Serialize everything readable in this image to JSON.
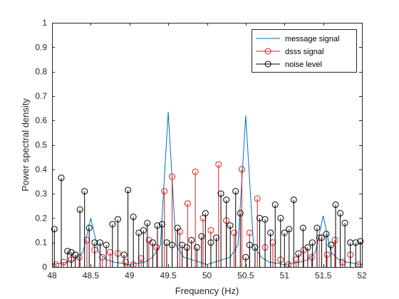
{
  "chart_data": {
    "type": "line+stem",
    "title": "",
    "xlabel": "Frequency (Hz)",
    "ylabel": "Power spectral density",
    "xlim": [
      48,
      52
    ],
    "ylim": [
      0,
      1
    ],
    "xticks": [
      48,
      48.5,
      49,
      49.5,
      50,
      50.5,
      51,
      51.5,
      52
    ],
    "xtick_labels": [
      "48",
      "48.5",
      "49",
      "49.5",
      "50",
      "50.5",
      "51",
      "51.5",
      "52"
    ],
    "yticks": [
      0,
      0.1,
      0.2,
      0.3,
      0.4,
      0.5,
      0.6,
      0.7,
      0.8,
      0.9,
      1
    ],
    "ytick_labels": [
      "0",
      "0.1",
      "0.2",
      "0.3",
      "0.4",
      "0.5",
      "0.6",
      "0.7",
      "0.8",
      "0.9",
      "1"
    ],
    "legend_position": "top-right",
    "series": [
      {
        "name": "message signal",
        "kind": "line",
        "color": "#0072BD",
        "x": [
          48.0,
          48.1,
          48.2,
          48.3,
          48.4,
          48.5,
          48.6,
          48.7,
          48.8,
          48.9,
          49.0,
          49.1,
          49.2,
          49.3,
          49.4,
          49.5,
          49.6,
          49.7,
          49.8,
          49.9,
          50.0,
          50.1,
          50.2,
          50.3,
          50.4,
          50.5,
          50.6,
          50.7,
          50.8,
          50.9,
          51.0,
          51.1,
          51.2,
          51.3,
          51.4,
          51.5,
          51.6,
          51.7,
          51.8,
          51.9,
          52.0
        ],
        "y": [
          0.01,
          0.015,
          0.02,
          0.03,
          0.06,
          0.2,
          0.06,
          0.03,
          0.02,
          0.015,
          0.01,
          0.015,
          0.02,
          0.04,
          0.09,
          0.635,
          0.09,
          0.04,
          0.03,
          0.02,
          0.01,
          0.02,
          0.03,
          0.04,
          0.09,
          0.62,
          0.09,
          0.04,
          0.02,
          0.015,
          0.01,
          0.015,
          0.02,
          0.03,
          0.06,
          0.21,
          0.06,
          0.03,
          0.02,
          0.015,
          0.01
        ]
      },
      {
        "name": "dsss signal",
        "kind": "stem",
        "color": "#E31A1C",
        "x": [
          48.05,
          48.15,
          48.25,
          48.35,
          48.45,
          48.55,
          48.65,
          48.75,
          48.85,
          48.95,
          49.05,
          49.15,
          49.25,
          49.35,
          49.45,
          49.55,
          49.65,
          49.75,
          49.85,
          49.95,
          50.05,
          50.15,
          50.25,
          50.35,
          50.45,
          50.55,
          50.65,
          50.75,
          50.85,
          50.95,
          51.05,
          51.15,
          51.25,
          51.35,
          51.45,
          51.55,
          51.65,
          51.75,
          51.85,
          51.95
        ],
        "y": [
          0.01,
          0.02,
          0.03,
          0.04,
          0.11,
          0.07,
          0.04,
          0.06,
          0.055,
          0.02,
          0.01,
          0.035,
          0.11,
          0.08,
          0.31,
          0.37,
          0.145,
          0.26,
          0.39,
          0.2,
          0.15,
          0.42,
          0.19,
          0.14,
          0.4,
          0.14,
          0.28,
          0.08,
          0.1,
          0.03,
          0.01,
          0.03,
          0.07,
          0.04,
          0.12,
          0.05,
          0.11,
          0.02,
          0.05,
          0.01
        ]
      },
      {
        "name": "noise level",
        "kind": "stem",
        "color": "#000000",
        "x": [
          48.03,
          48.12,
          48.2,
          48.25,
          48.3,
          48.36,
          48.42,
          48.48,
          48.55,
          48.62,
          48.7,
          48.78,
          48.85,
          48.93,
          48.98,
          49.05,
          49.12,
          49.18,
          49.23,
          49.3,
          49.36,
          49.42,
          49.48,
          49.55,
          49.62,
          49.68,
          49.74,
          49.8,
          49.87,
          49.93,
          49.98,
          50.05,
          50.12,
          50.18,
          50.25,
          50.3,
          50.37,
          50.43,
          50.5,
          50.55,
          50.62,
          50.68,
          50.75,
          50.82,
          50.88,
          50.95,
          51.0,
          51.06,
          51.12,
          51.18,
          51.24,
          51.3,
          51.36,
          51.42,
          51.48,
          51.54,
          51.6,
          51.66,
          51.72,
          51.78,
          51.85,
          51.92,
          51.98
        ],
        "y": [
          0.155,
          0.365,
          0.065,
          0.06,
          0.05,
          0.235,
          0.31,
          0.16,
          0.1,
          0.1,
          0.09,
          0.175,
          0.195,
          0.05,
          0.315,
          0.205,
          0.14,
          0.15,
          0.18,
          0.1,
          0.17,
          0.175,
          0.1,
          0.09,
          0.16,
          0.09,
          0.08,
          0.11,
          0.08,
          0.125,
          0.22,
          0.1,
          0.12,
          0.3,
          0.275,
          0.17,
          0.31,
          0.22,
          0.04,
          0.09,
          0.08,
          0.2,
          0.195,
          0.14,
          0.255,
          0.2,
          0.14,
          0.155,
          0.275,
          0.055,
          0.16,
          0.08,
          0.1,
          0.16,
          0.12,
          0.135,
          0.09,
          0.255,
          0.22,
          0.18,
          0.1,
          0.1,
          0.105
        ]
      }
    ]
  }
}
